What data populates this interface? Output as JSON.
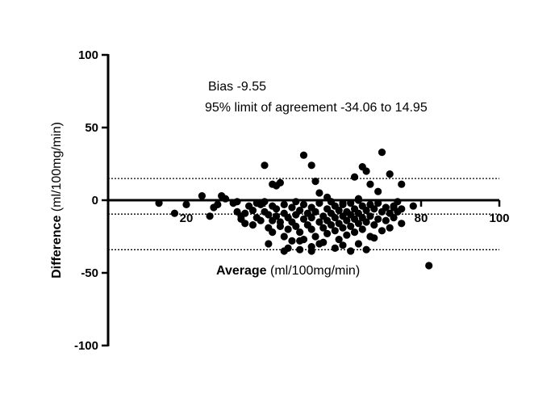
{
  "chart_data": {
    "type": "scatter",
    "title": "",
    "xlabel": {
      "bold": "Average",
      "rest": " (ml/100mg/min)"
    },
    "ylabel": {
      "bold": "Difference",
      "rest": " (ml/100mg/min)"
    },
    "xlim": [
      0,
      100
    ],
    "ylim": [
      -100,
      100
    ],
    "x_ticks": [
      20,
      40,
      60,
      80,
      100
    ],
    "x_tick_labels": [
      "20",
      "",
      "",
      "80",
      "100"
    ],
    "y_ticks": [
      100,
      50,
      0,
      -50,
      -100
    ],
    "y_tick_labels": [
      "100",
      "50",
      "0",
      "-50",
      "-100"
    ],
    "annotations": {
      "bias": "Bias -9.55",
      "limits": "95% limit of agreement -34.06 to 14.95"
    },
    "reference_lines": {
      "bias": -9.55,
      "upper": 14.95,
      "lower": -34.06
    },
    "grid": false,
    "points": [
      [
        13,
        -2
      ],
      [
        17,
        -9
      ],
      [
        20,
        -3
      ],
      [
        24,
        3
      ],
      [
        26,
        -11
      ],
      [
        27,
        -5
      ],
      [
        28,
        -3
      ],
      [
        29,
        3
      ],
      [
        30,
        1
      ],
      [
        32,
        -2
      ],
      [
        33,
        -1
      ],
      [
        33,
        -8
      ],
      [
        34,
        -11
      ],
      [
        34,
        -13
      ],
      [
        35,
        -16
      ],
      [
        35,
        -9
      ],
      [
        36,
        -4
      ],
      [
        37,
        -7
      ],
      [
        37,
        -17
      ],
      [
        38,
        -12
      ],
      [
        38,
        -2
      ],
      [
        39,
        -3
      ],
      [
        39,
        -14
      ],
      [
        40,
        -1
      ],
      [
        40,
        -8
      ],
      [
        41,
        -10
      ],
      [
        41,
        -19
      ],
      [
        42,
        -4
      ],
      [
        42,
        -14
      ],
      [
        42,
        -22
      ],
      [
        43,
        -6
      ],
      [
        43,
        -11
      ],
      [
        44,
        -15
      ],
      [
        44,
        -18
      ],
      [
        45,
        -3
      ],
      [
        45,
        -9
      ],
      [
        45,
        -25
      ],
      [
        46,
        -12
      ],
      [
        46,
        -20
      ],
      [
        47,
        -5
      ],
      [
        47,
        -15
      ],
      [
        47,
        -28
      ],
      [
        48,
        -1
      ],
      [
        48,
        -10
      ],
      [
        48,
        -18
      ],
      [
        49,
        -7
      ],
      [
        49,
        -22
      ],
      [
        50,
        -13
      ],
      [
        50,
        -3
      ],
      [
        50,
        -27
      ],
      [
        51,
        -9
      ],
      [
        51,
        -17
      ],
      [
        52,
        -5
      ],
      [
        52,
        -20
      ],
      [
        52,
        -12
      ],
      [
        53,
        -8
      ],
      [
        53,
        -25
      ],
      [
        54,
        -2
      ],
      [
        54,
        -15
      ],
      [
        54,
        -30
      ],
      [
        55,
        -11
      ],
      [
        55,
        -19
      ],
      [
        56,
        -6
      ],
      [
        56,
        -14
      ],
      [
        56,
        -23
      ],
      [
        57,
        -1
      ],
      [
        57,
        -9
      ],
      [
        57,
        -17
      ],
      [
        58,
        -4
      ],
      [
        58,
        -12
      ],
      [
        58,
        -21
      ],
      [
        59,
        -7
      ],
      [
        59,
        -16
      ],
      [
        59,
        -27
      ],
      [
        60,
        -3
      ],
      [
        60,
        -11
      ],
      [
        60,
        -19
      ],
      [
        61,
        -8
      ],
      [
        61,
        -14
      ],
      [
        61,
        -24
      ],
      [
        62,
        -2
      ],
      [
        62,
        -10
      ],
      [
        62,
        -18
      ],
      [
        63,
        -6
      ],
      [
        63,
        -13
      ],
      [
        63,
        -22
      ],
      [
        64,
        0
      ],
      [
        64,
        -9
      ],
      [
        64,
        -16
      ],
      [
        65,
        -4
      ],
      [
        65,
        -12
      ],
      [
        65,
        -20
      ],
      [
        66,
        -7
      ],
      [
        66,
        -15
      ],
      [
        67,
        -3
      ],
      [
        67,
        -11
      ],
      [
        67,
        -25
      ],
      [
        68,
        -6
      ],
      [
        68,
        -17
      ],
      [
        69,
        -2
      ],
      [
        69,
        -13
      ],
      [
        70,
        -8
      ],
      [
        70,
        -21
      ],
      [
        71,
        -5
      ],
      [
        71,
        -14
      ],
      [
        72,
        -9
      ],
      [
        72,
        -19
      ],
      [
        73,
        -4
      ],
      [
        73,
        -12
      ],
      [
        74,
        -1
      ],
      [
        74,
        -8
      ],
      [
        75,
        -16
      ],
      [
        75,
        -6
      ],
      [
        40,
        24
      ],
      [
        42,
        11
      ],
      [
        43,
        10
      ],
      [
        44,
        12
      ],
      [
        50,
        31
      ],
      [
        52,
        24
      ],
      [
        53,
        13
      ],
      [
        54,
        5
      ],
      [
        56,
        2
      ],
      [
        57,
        -1
      ],
      [
        60,
        -2
      ],
      [
        63,
        16
      ],
      [
        64,
        1
      ],
      [
        65,
        23
      ],
      [
        66,
        20
      ],
      [
        67,
        11
      ],
      [
        69,
        6
      ],
      [
        70,
        33
      ],
      [
        72,
        18
      ],
      [
        75,
        11
      ],
      [
        73,
        -5
      ],
      [
        78,
        -4
      ],
      [
        41,
        -30
      ],
      [
        45,
        -35
      ],
      [
        46,
        -33
      ],
      [
        49,
        -28
      ],
      [
        52,
        -32
      ],
      [
        55,
        -29
      ],
      [
        58,
        -33
      ],
      [
        60,
        -31
      ],
      [
        62,
        -35
      ],
      [
        64,
        -30
      ],
      [
        66,
        -34
      ],
      [
        68,
        -26
      ],
      [
        82,
        -45
      ],
      [
        52,
        -35
      ],
      [
        49,
        -34
      ]
    ]
  }
}
